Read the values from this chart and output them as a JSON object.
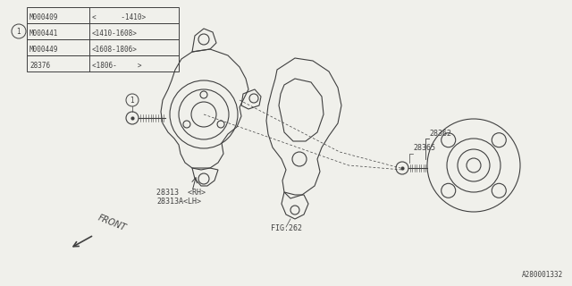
{
  "bg_color": "#f0f0eb",
  "line_color": "#404040",
  "table_rows": [
    [
      "M000409",
      "<      -1410>"
    ],
    [
      "M000441",
      "<1410-1608>"
    ],
    [
      "M000449",
      "<1608-1806>"
    ],
    [
      "28376",
      "<1806-     >"
    ]
  ],
  "part_num": "A280001332",
  "label_28313": "28313  <RH>\n28313A<LH>",
  "label_fig262": "FIG.262",
  "label_28362": "28362",
  "label_28365": "28365",
  "label_front": "FRONT"
}
